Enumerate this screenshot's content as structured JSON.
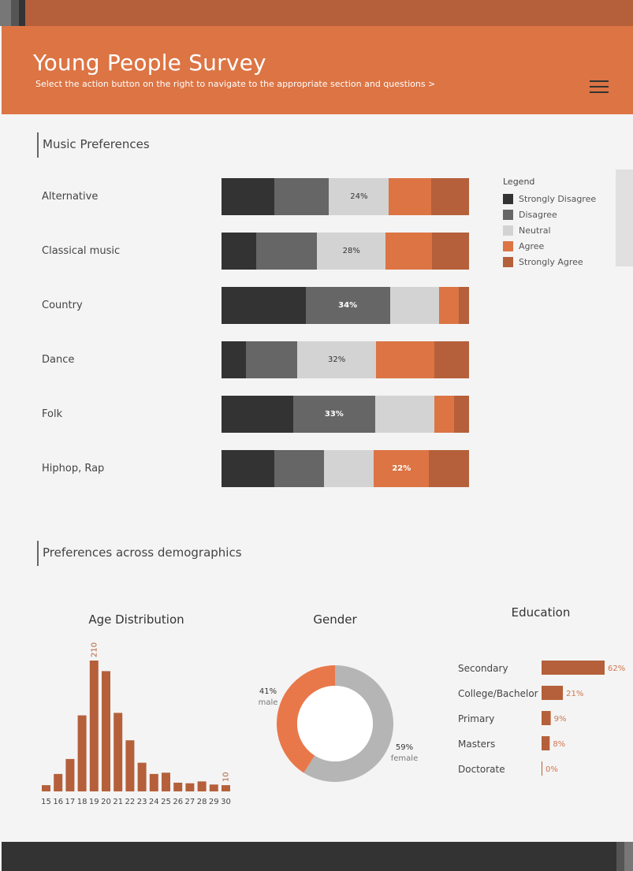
{
  "header": {
    "title": "Young People Survey",
    "subtitle": "Select the action button on the right to navigate to the appropriate section and questions >"
  },
  "colors": {
    "strongly_disagree": "#333333",
    "disagree": "#666666",
    "neutral": "#d3d3d3",
    "agree": "#dc7444",
    "strongly_agree": "#b5603b",
    "bar": "#b5603b",
    "donut_male": "#e8784a",
    "donut_female": "#b5b5b5"
  },
  "sections": {
    "music": "Music Preferences",
    "demographics": "Preferences across demographics"
  },
  "legend": {
    "title": "Legend",
    "items": [
      "Strongly Disagree",
      "Disagree",
      "Neutral",
      "Agree",
      "Strongly Agree"
    ]
  },
  "chart_data": [
    {
      "type": "bar",
      "orientation": "horizontal-stacked",
      "categories": [
        "Alternative",
        "Classical music",
        "Country",
        "Dance",
        "Folk",
        "Hiphop, Rap"
      ],
      "series": [
        {
          "name": "Strongly Disagree",
          "values": [
            21,
            14,
            34,
            10,
            29,
            21
          ]
        },
        {
          "name": "Disagree",
          "values": [
            22,
            25,
            34,
            21,
            33,
            20
          ]
        },
        {
          "name": "Neutral",
          "values": [
            24,
            28,
            20,
            32,
            24,
            20
          ]
        },
        {
          "name": "Agree",
          "values": [
            17,
            19,
            8,
            24,
            8,
            22
          ]
        },
        {
          "name": "Strongly Agree",
          "values": [
            15,
            15,
            4,
            14,
            6,
            16
          ]
        }
      ],
      "labels": [
        "24%",
        "28%",
        "34%",
        "32%",
        "33%",
        "22%"
      ],
      "label_series": [
        "Neutral",
        "Neutral",
        "Disagree",
        "Neutral",
        "Disagree",
        "Agree"
      ]
    },
    {
      "type": "bar",
      "title": "Age Distribution",
      "categories": [
        "15",
        "16",
        "17",
        "18",
        "19",
        "20",
        "21",
        "22",
        "23",
        "24",
        "25",
        "26",
        "27",
        "28",
        "29",
        "30"
      ],
      "values": [
        10,
        28,
        52,
        122,
        210,
        193,
        126,
        82,
        46,
        28,
        30,
        14,
        13,
        16,
        11,
        10
      ],
      "data_labels": {
        "19": "210",
        "30": "10"
      }
    },
    {
      "type": "pie",
      "title": "Gender",
      "slices": [
        {
          "name": "male",
          "value": 41,
          "label": "41%"
        },
        {
          "name": "female",
          "value": 59,
          "label": "59%"
        }
      ]
    },
    {
      "type": "bar",
      "orientation": "horizontal",
      "title": "Education",
      "categories": [
        "Secondary",
        "College/Bachelor",
        "Primary",
        "Masters",
        "Doctorate"
      ],
      "values": [
        62,
        21,
        9,
        8,
        0
      ],
      "labels": [
        "62%",
        "21%",
        "9%",
        "8%",
        "0%"
      ]
    }
  ]
}
